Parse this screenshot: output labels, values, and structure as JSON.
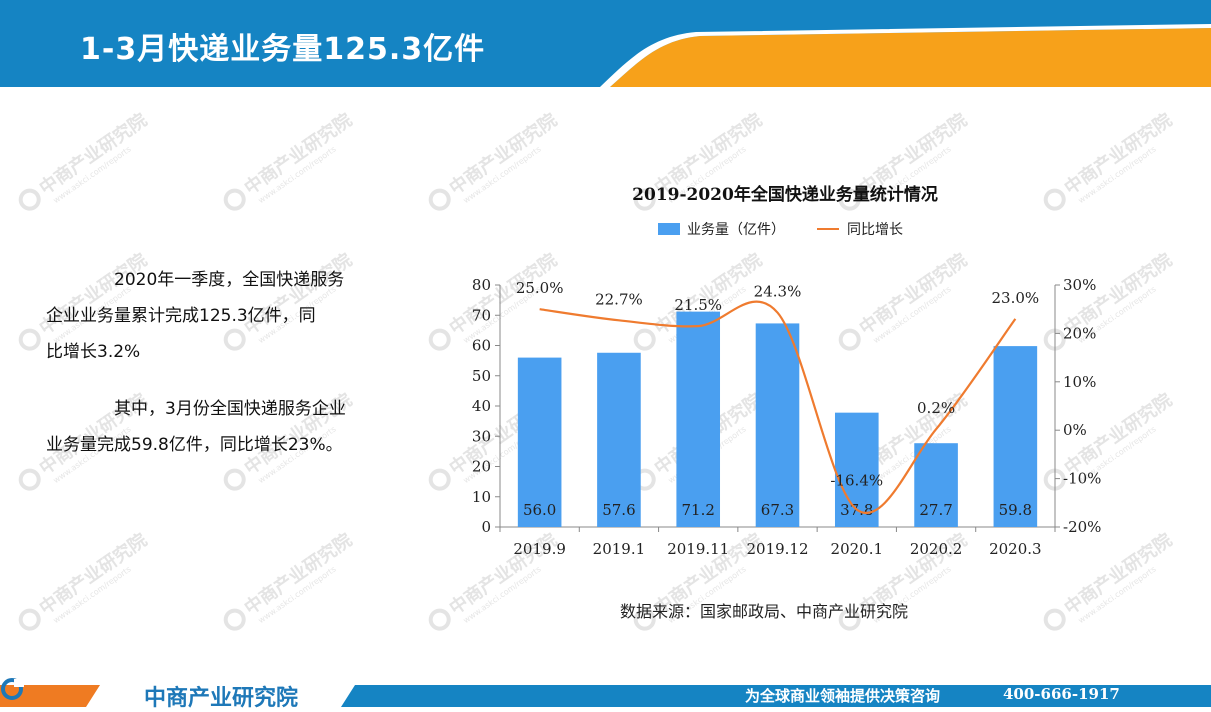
{
  "header": {
    "title": "1-3月快递业务量125.3亿件"
  },
  "watermark": {
    "text": "中商产业研究院",
    "url": "www.askci.com/reports"
  },
  "body_text": {
    "p1_line1": "2020年一季度，全国快递服务",
    "p1_line2": "企业业务量累计完成125.3亿件，同",
    "p1_line3": "比增长3.2%",
    "p2_line1": "其中，3月份全国快递服务企业",
    "p2_line2": "业务量完成59.8亿件，同比增长23%。"
  },
  "chart_data": {
    "type": "bar",
    "title": "2019-2020年全国快递业务量统计情况",
    "categories": [
      "2019.9",
      "2019.1",
      "2019.11",
      "2019.12",
      "2020.1",
      "2020.2",
      "2020.3"
    ],
    "series": [
      {
        "name": "业务量（亿件）",
        "type": "bar",
        "axis": "left",
        "values": [
          56.0,
          57.6,
          71.2,
          67.3,
          37.8,
          27.7,
          59.8
        ],
        "labels": [
          "56.0",
          "57.6",
          "71.2",
          "67.3",
          "37.8",
          "27.7",
          "59.8"
        ],
        "color": "#4a9ff0"
      },
      {
        "name": "同比增长",
        "type": "line",
        "axis": "right",
        "values": [
          25.0,
          22.7,
          21.5,
          24.3,
          -16.4,
          0.2,
          23.0
        ],
        "labels": [
          "25.0%",
          "22.7%",
          "21.5%",
          "24.3%",
          "-16.4%",
          "0.2%",
          "23.0%"
        ],
        "color": "#ef7b2f"
      }
    ],
    "ylim_left": [
      0,
      80
    ],
    "yticks_left": [
      "0",
      "10",
      "20",
      "30",
      "40",
      "50",
      "60",
      "70",
      "80"
    ],
    "ylim_right": [
      -20,
      30
    ],
    "yticks_right": [
      "-20%",
      "-10%",
      "0%",
      "10%",
      "20%",
      "30%"
    ],
    "legend_position": "top",
    "grid": false
  },
  "source": {
    "text": "数据来源：国家邮政局、中商产业研究院"
  },
  "footer": {
    "logo_text": "中商产业研究院",
    "slogan": "为全球商业领袖提供决策咨询",
    "phone": "400-666-1917"
  },
  "colors": {
    "header_blue": "#1584c3",
    "header_orange": "#f7a11a",
    "footer_orange": "#ef7b22",
    "bar": "#4a9ff0",
    "line": "#ef7b2f"
  }
}
